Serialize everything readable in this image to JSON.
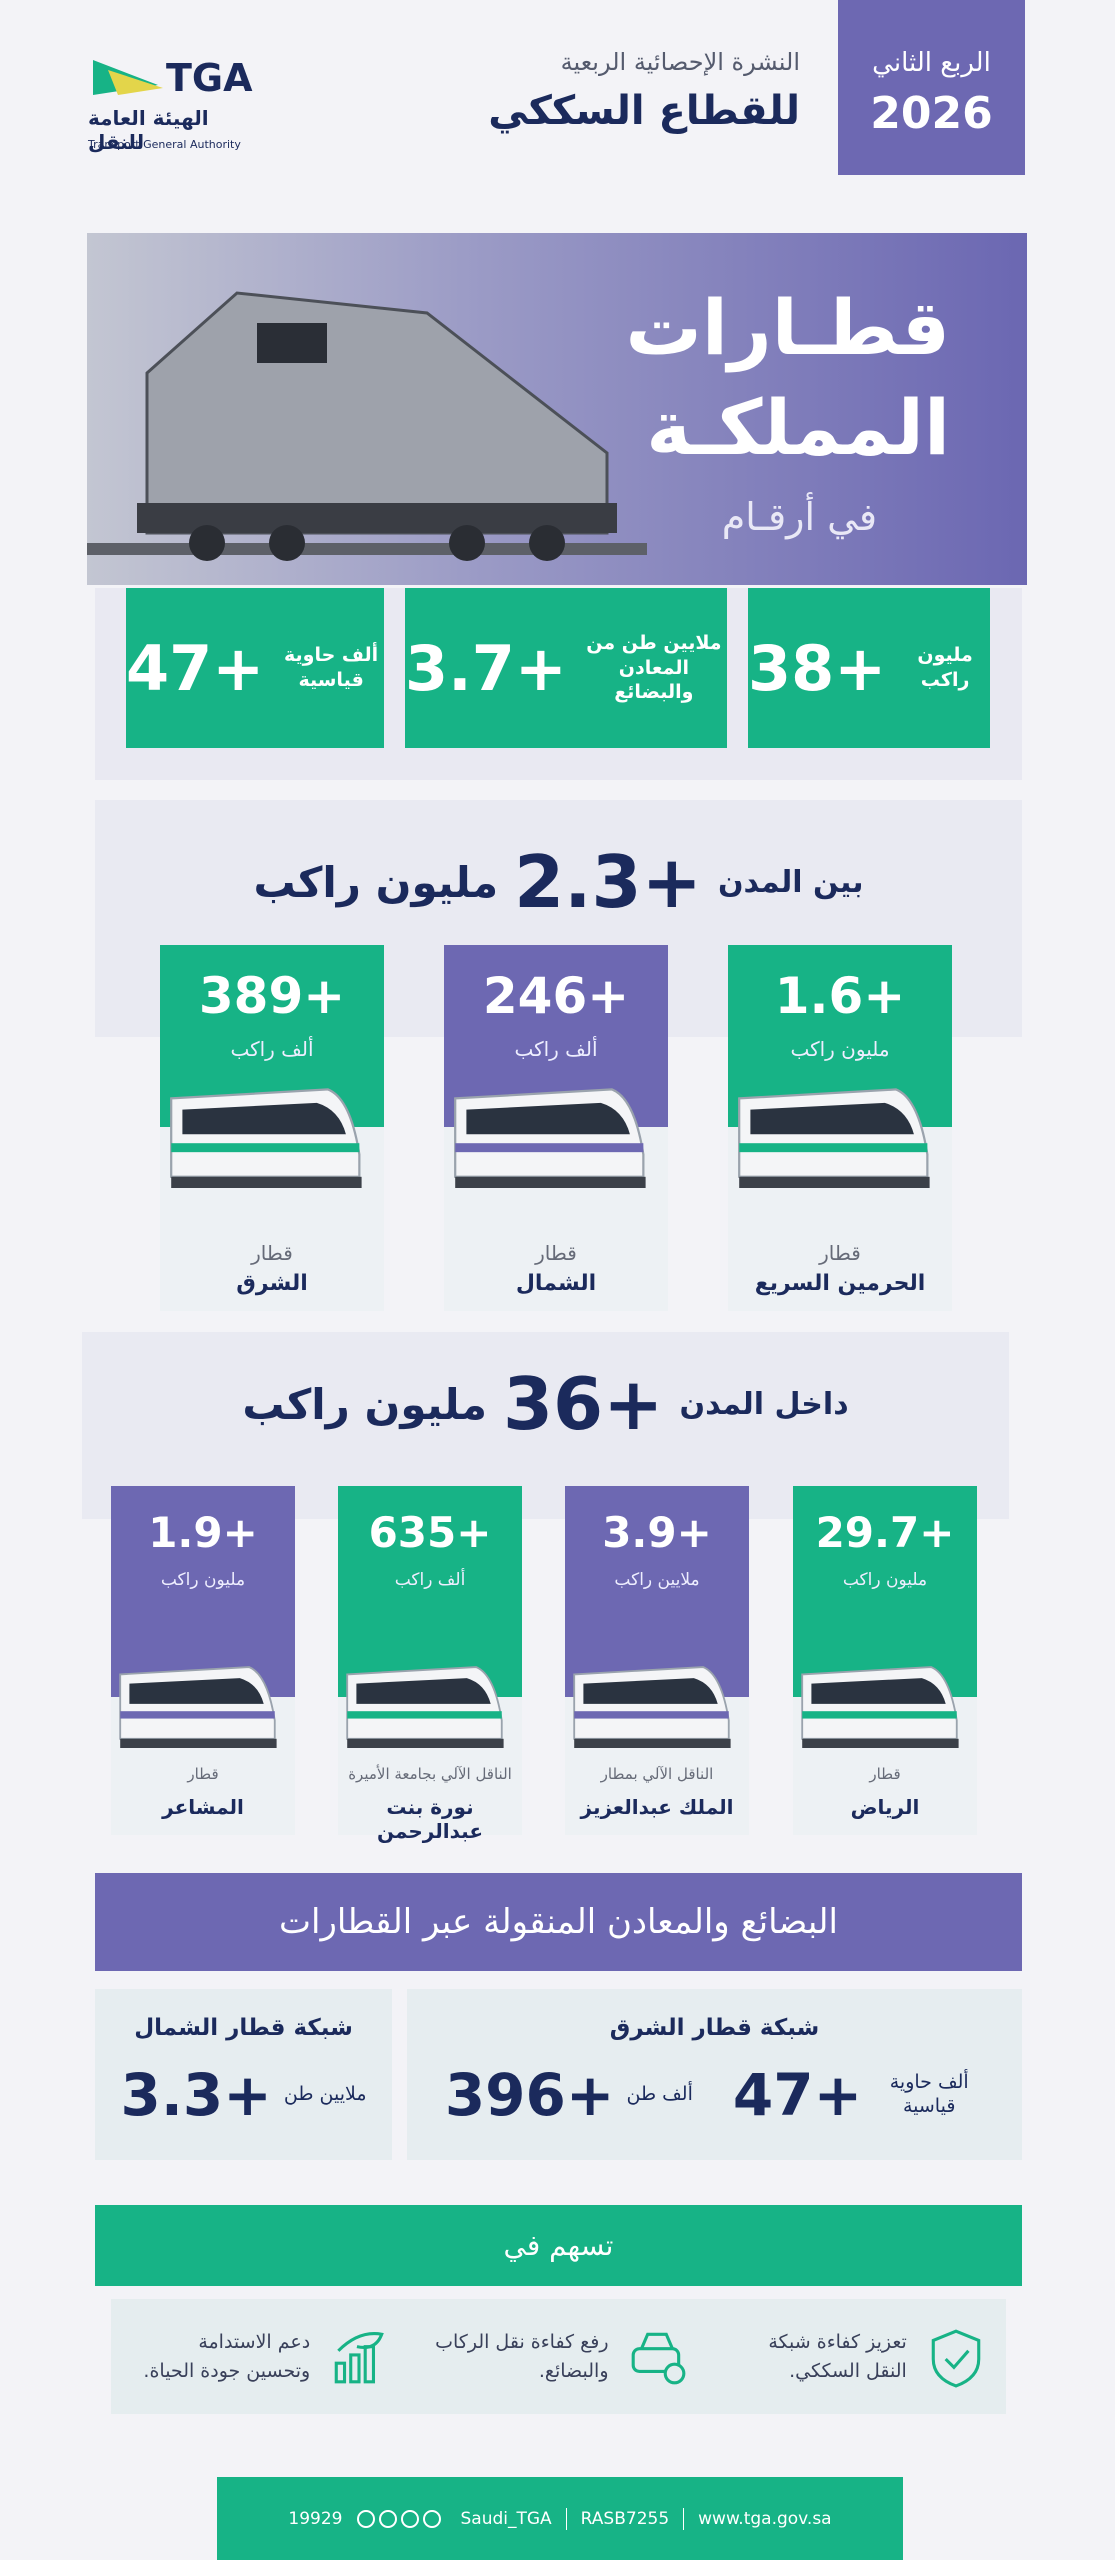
{
  "header": {
    "logo": {
      "abbr": "TGA",
      "name_ar": "الهيئة العامة للنقل",
      "name_en": "Transport General Authority"
    },
    "subtitle": "النشرة الإحصائية الربعية",
    "title": "للقطاع السككي",
    "quarter": "الربع الثاني",
    "year": "2026"
  },
  "hero": {
    "line1": "قطـارات",
    "line2": "المملكـة",
    "line3": "في أرقـام"
  },
  "stats": [
    {
      "value": "+38",
      "unit": "مليون راكب"
    },
    {
      "value": "+3.7",
      "unit": "ملايين طن من المعادن والبضائع"
    },
    {
      "value": "+47",
      "unit": "ألف حاوية قياسية"
    }
  ],
  "intercity": {
    "label": "بين المدن",
    "value": "+2.3",
    "unit": "مليون راكب",
    "trains": [
      {
        "value": "+1.6",
        "unit": "مليون راكب",
        "caption": "قطار",
        "name": "الحرمين السريع"
      },
      {
        "value": "+246",
        "unit": "ألف راكب",
        "caption": "قطار",
        "name": "الشمال"
      },
      {
        "value": "+389",
        "unit": "ألف راكب",
        "caption": "قطار",
        "name": "الشرق"
      }
    ]
  },
  "urban": {
    "label": "داخل المدن",
    "value": "+36",
    "unit": "مليون راكب",
    "trains": [
      {
        "value": "+29.7",
        "unit": "مليون راكب",
        "caption": "قطار",
        "name": "الرياض"
      },
      {
        "value": "+3.9",
        "unit": "ملايين راكب",
        "caption": "الناقل الآلي بمطار",
        "name": "الملك عبدالعزيز"
      },
      {
        "value": "+635",
        "unit": "ألف راكب",
        "caption": "الناقل الآلي بجامعة الأميرة",
        "name": "نورة بنت عبدالرحمن"
      },
      {
        "value": "+1.9",
        "unit": "مليون راكب",
        "caption": "قطار",
        "name": "المشاعر"
      }
    ]
  },
  "freight": {
    "title": "البضائع والمعادن المنقولة عبر القطارات",
    "networks": [
      {
        "name": "شبكة قطار الشرق",
        "items": [
          {
            "value": "+47",
            "unit": "ألف حاوية قياسية"
          },
          {
            "value": "+396",
            "unit": "ألف طن"
          }
        ]
      },
      {
        "name": "شبكة قطار الشمال",
        "items": [
          {
            "value": "+3.3",
            "unit": "ملايين طن"
          }
        ]
      }
    ]
  },
  "contributions": {
    "title": "تسهم في",
    "items": [
      "تعزيز كفاءة شبكة النقل السككي.",
      "رفع كفاءة نقل الركاب والبضائع.",
      "دعم الاستدامة وتحسين جودة الحياة."
    ]
  },
  "footer": {
    "phone": "19929",
    "social": "Saudi_TGA",
    "reg": "RASB7255",
    "website": "www.tga.gov.sa"
  }
}
